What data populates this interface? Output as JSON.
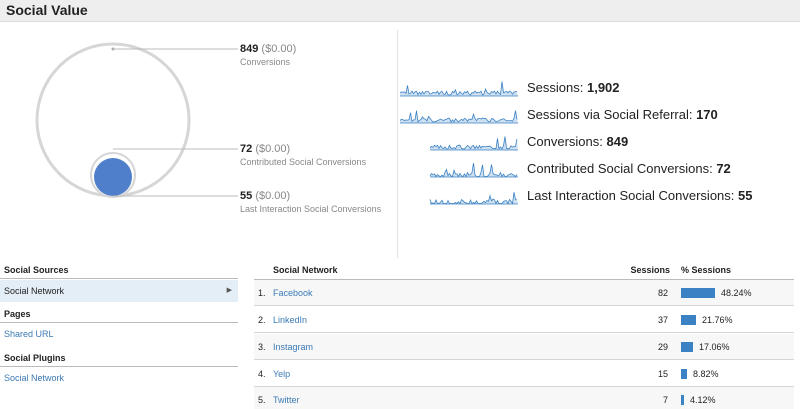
{
  "header": {
    "title": "Social Value"
  },
  "conversions": [
    {
      "value": "849",
      "money": "($0.00)",
      "label": "Conversions"
    },
    {
      "value": "72",
      "money": "($0.00)",
      "label": "Contributed Social Conversions"
    },
    {
      "value": "55",
      "money": "($0.00)",
      "label": "Last Interaction Social Conversions"
    }
  ],
  "sparklines": [
    {
      "label": "Sessions: ",
      "value": "1,902"
    },
    {
      "label": "Sessions via Social Referral: ",
      "value": "170"
    },
    {
      "label": "Conversions: ",
      "value": "849"
    },
    {
      "label": "Contributed Social Conversions: ",
      "value": "72"
    },
    {
      "label": "Last Interaction Social Conversions: ",
      "value": "55"
    }
  ],
  "left_nav": {
    "sources_heading": "Social Sources",
    "sources_item": "Social Network",
    "pages_heading": "Pages",
    "pages_item": "Shared URL",
    "plugins_heading": "Social Plugins",
    "plugins_item": "Social Network"
  },
  "table": {
    "columns": {
      "network": "Social Network",
      "sessions": "Sessions",
      "pct": "% Sessions"
    },
    "rows": [
      {
        "idx": "1.",
        "name": "Facebook",
        "sessions": "82",
        "pct": "48.24%",
        "share": 0.4824
      },
      {
        "idx": "2.",
        "name": "LinkedIn",
        "sessions": "37",
        "pct": "21.76%",
        "share": 0.2176
      },
      {
        "idx": "3.",
        "name": "Instagram",
        "sessions": "29",
        "pct": "17.06%",
        "share": 0.1706
      },
      {
        "idx": "4.",
        "name": "Yelp",
        "sessions": "15",
        "pct": "8.82%",
        "share": 0.0882
      },
      {
        "idx": "5.",
        "name": "Twitter",
        "sessions": "7",
        "pct": "4.12%",
        "share": 0.0412
      }
    ]
  },
  "colors": {
    "accent": "#3b82c4",
    "link": "#3c7ab5",
    "circle": "#4f7fca"
  }
}
